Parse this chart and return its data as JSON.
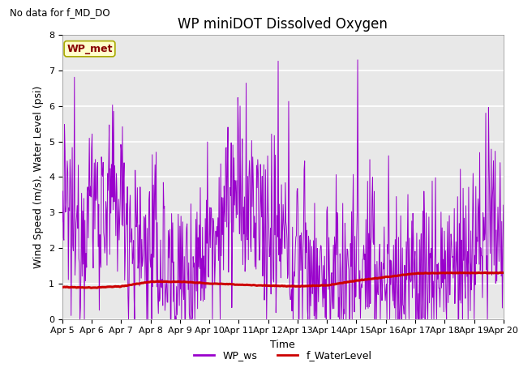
{
  "title": "WP miniDOT Dissolved Oxygen",
  "top_left_text": "No data for f_MD_DO",
  "xlabel": "Time",
  "ylabel": "Wind Speed (m/s), Water Level (psi)",
  "ylim": [
    0.0,
    8.0
  ],
  "yticks": [
    0.0,
    1.0,
    2.0,
    3.0,
    4.0,
    5.0,
    6.0,
    7.0,
    8.0
  ],
  "xtick_labels": [
    "Apr 5",
    "Apr 6",
    "Apr 7",
    "Apr 8",
    "Apr 9",
    "Apr 10",
    "Apr 11",
    "Apr 12",
    "Apr 13",
    "Apr 14",
    "Apr 15",
    "Apr 16",
    "Apr 17",
    "Apr 18",
    "Apr 19",
    "Apr 20"
  ],
  "legend_entries": [
    "WP_ws",
    "f_WaterLevel"
  ],
  "wp_ws_color": "#9900CC",
  "f_water_color": "#CC0000",
  "annotation_box_text": "WP_met",
  "annotation_box_color": "#FFFFCC",
  "annotation_text_color": "#880000",
  "annotation_edge_color": "#AAAA00",
  "background_color": "#E8E8E8",
  "grid_color": "#FFFFFF",
  "title_fontsize": 12,
  "label_fontsize": 9,
  "tick_fontsize": 8,
  "legend_fontsize": 9
}
